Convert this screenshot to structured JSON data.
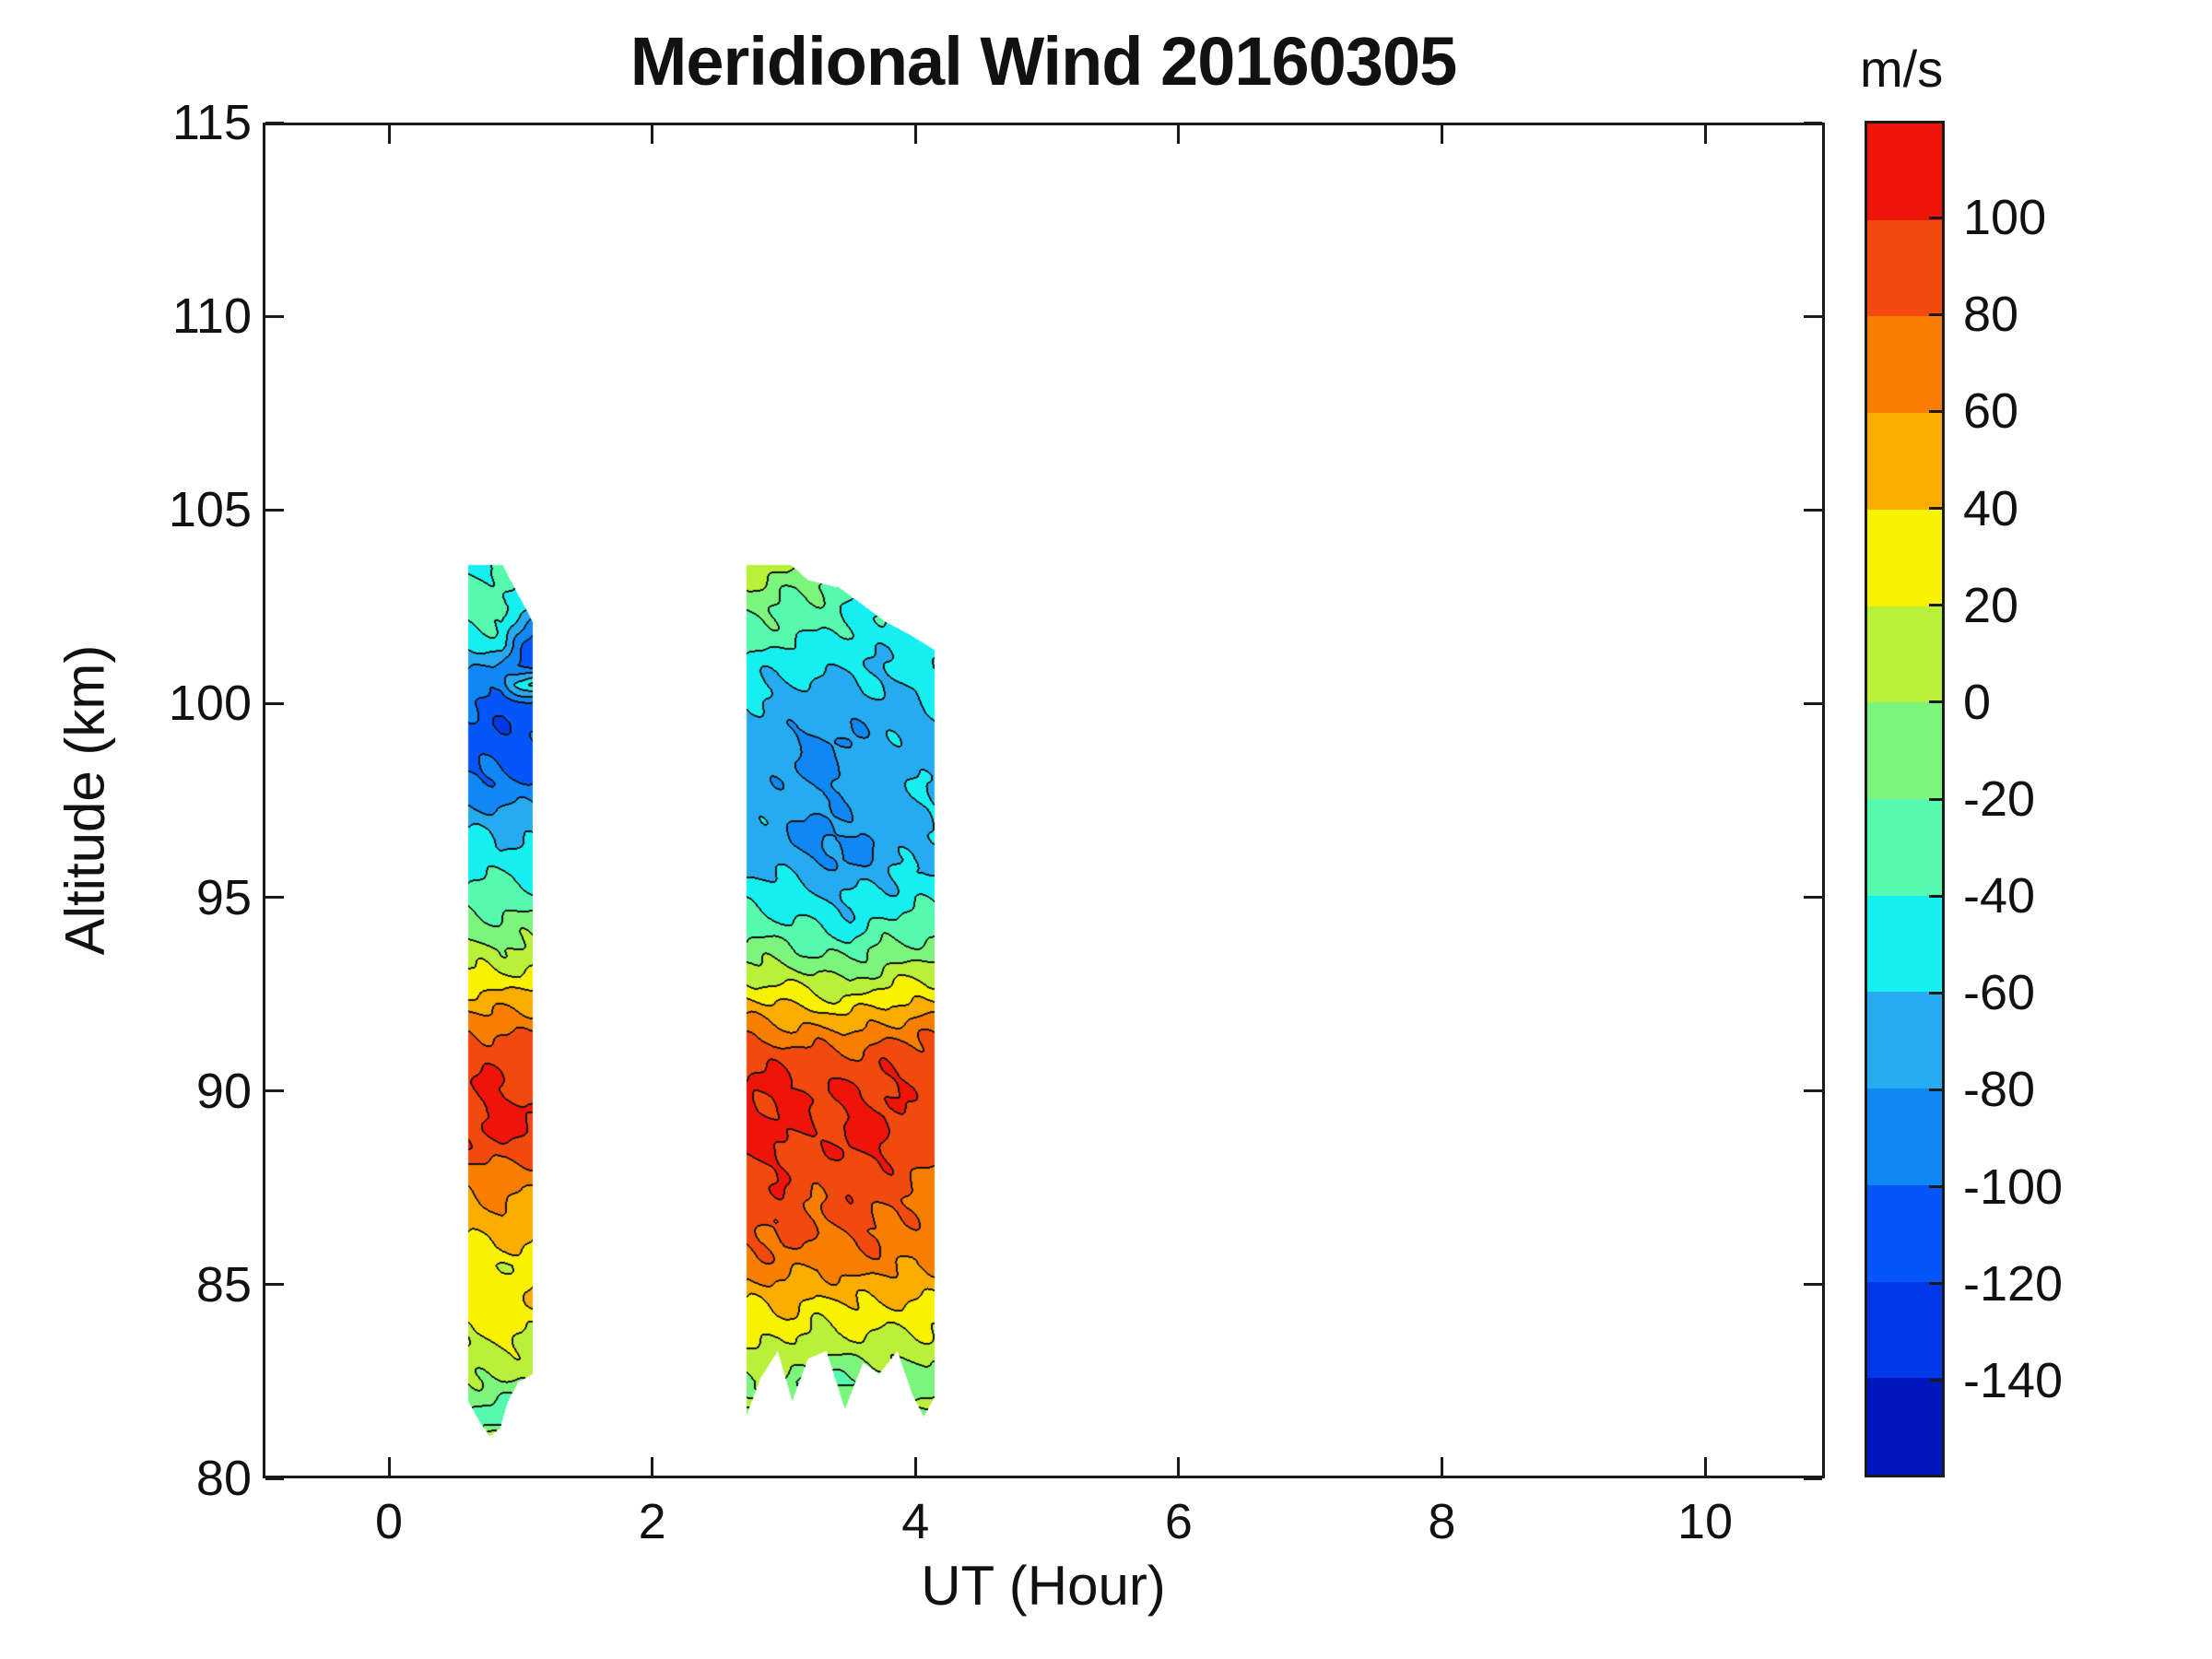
{
  "title": "Meridional Wind 20160305",
  "axes": {
    "xlabel": "UT (Hour)",
    "ylabel": "Altitude (km)",
    "xlim": [
      -0.96,
      10.91
    ],
    "ylim": [
      80,
      115
    ],
    "xticks": [
      0,
      2,
      4,
      6,
      8,
      10
    ],
    "yticks": [
      80,
      85,
      90,
      95,
      100,
      105,
      110,
      115
    ],
    "axis_color": "#1a1a1a",
    "background": "#ffffff"
  },
  "colorbar": {
    "unit": "m/s",
    "tick_values": [
      100,
      80,
      60,
      40,
      20,
      0,
      -20,
      -40,
      -60,
      -80,
      -100,
      -120,
      -140
    ],
    "level_min": -160,
    "level_max": 120,
    "level_step": 20,
    "colors_ascending": [
      "#0016BE",
      "#0038E8",
      "#0556FA",
      "#0F87F5",
      "#27ABF0",
      "#16EFF0",
      "#55FAAE",
      "#7CF57C",
      "#B8F03A",
      "#F8F200",
      "#FAAC00",
      "#F87E00",
      "#F2490E",
      "#EE1409"
    ],
    "contour_line_color": "#111111"
  },
  "chart_data": {
    "type": "heatmap",
    "subtype": "filled-contour",
    "units": "m/s",
    "title": "Meridional Wind 20160305",
    "xlabel": "UT (Hour)",
    "ylabel": "Altitude (km)",
    "levels": [
      -160,
      -140,
      -120,
      -100,
      -80,
      -60,
      -40,
      -20,
      0,
      20,
      40,
      60,
      80,
      100,
      120
    ],
    "patches": [
      {
        "name": "patch-1",
        "t_range": [
          0.6,
          1.09
        ],
        "times": [
          0.62,
          0.85,
          1.08
        ],
        "top_outline": [
          [
            0.6,
            103.6
          ],
          [
            0.86,
            103.6
          ],
          [
            0.95,
            103.0
          ],
          [
            1.03,
            102.5
          ],
          [
            1.09,
            102.1
          ]
        ],
        "bottom_outline": [
          [
            0.6,
            82.0
          ],
          [
            0.68,
            81.5
          ],
          [
            0.76,
            81.1
          ],
          [
            0.84,
            81.3
          ],
          [
            0.9,
            82.0
          ],
          [
            0.98,
            82.5
          ],
          [
            1.09,
            82.7
          ]
        ],
        "alts": [
          81,
          81.5,
          82,
          82.5,
          83,
          83.5,
          84,
          84.5,
          85,
          85.5,
          86,
          86.5,
          87,
          87.5,
          88,
          88.5,
          89,
          89.5,
          90,
          90.5,
          91,
          91.5,
          92,
          92.5,
          93,
          93.5,
          94,
          94.5,
          95,
          95.5,
          96,
          96.5,
          97,
          97.5,
          98,
          98.5,
          99,
          99.5,
          100,
          100.5,
          101,
          101.5,
          102,
          102.5,
          103,
          103.5,
          104
        ],
        "values": [
          [
            15,
            20,
            18
          ],
          [
            -38,
            -30,
            -28
          ],
          [
            -18,
            -22,
            -25
          ],
          [
            -4,
            0,
            -8
          ],
          [
            8,
            12,
            6
          ],
          [
            18,
            22,
            15
          ],
          [
            25,
            30,
            28
          ],
          [
            35,
            28,
            42
          ],
          [
            30,
            32,
            35
          ],
          [
            25,
            20,
            28
          ],
          [
            38,
            42,
            35
          ],
          [
            48,
            52,
            45
          ],
          [
            55,
            60,
            52
          ],
          [
            62,
            68,
            58
          ],
          [
            72,
            78,
            70
          ],
          [
            90,
            96,
            88
          ],
          [
            100,
            106,
            98
          ],
          [
            104,
            108,
            102
          ],
          [
            96,
            102,
            94
          ],
          [
            94,
            98,
            92
          ],
          [
            88,
            95,
            90
          ],
          [
            78,
            85,
            80
          ],
          [
            62,
            60,
            64
          ],
          [
            45,
            42,
            48
          ],
          [
            25,
            22,
            28
          ],
          [
            8,
            5,
            8
          ],
          [
            -5,
            -8,
            -6
          ],
          [
            -16,
            -18,
            -16
          ],
          [
            -28,
            -32,
            -30
          ],
          [
            -38,
            -42,
            -40
          ],
          [
            -46,
            -50,
            -48
          ],
          [
            -56,
            -60,
            -58
          ],
          [
            -68,
            -72,
            -70
          ],
          [
            -82,
            -88,
            -84
          ],
          [
            -94,
            -100,
            -96
          ],
          [
            -102,
            -108,
            -103
          ],
          [
            -108,
            -112,
            -108
          ],
          [
            -106,
            -116,
            -110
          ],
          [
            -100,
            -110,
            -106
          ],
          [
            -88,
            -98,
            -30
          ],
          [
            -72,
            -84,
            -112
          ],
          [
            -58,
            -54,
            -106
          ],
          [
            -44,
            -40,
            -95
          ],
          [
            -30,
            -26,
            -72
          ],
          [
            -36,
            -32,
            -58
          ],
          [
            -42,
            -46,
            -52
          ],
          [
            -40,
            -45,
            -45
          ]
        ]
      },
      {
        "name": "patch-2",
        "t_range": [
          2.71,
          4.14
        ],
        "times": [
          2.75,
          3.0,
          3.25,
          3.5,
          3.75,
          4.05
        ],
        "top_outline": [
          [
            2.71,
            103.6
          ],
          [
            3.05,
            103.6
          ],
          [
            3.18,
            103.2
          ],
          [
            3.42,
            103.0
          ],
          [
            3.58,
            102.6
          ],
          [
            3.78,
            102.1
          ],
          [
            3.95,
            101.8
          ],
          [
            4.14,
            101.4
          ]
        ],
        "bottom_outline": [
          [
            2.71,
            81.6
          ],
          [
            2.82,
            82.6
          ],
          [
            2.95,
            83.3
          ],
          [
            3.06,
            82.0
          ],
          [
            3.18,
            83.1
          ],
          [
            3.32,
            83.3
          ],
          [
            3.46,
            81.8
          ],
          [
            3.6,
            83.0
          ],
          [
            3.72,
            82.7
          ],
          [
            3.86,
            83.3
          ],
          [
            3.97,
            82.2
          ],
          [
            4.06,
            81.6
          ],
          [
            4.14,
            82.1
          ]
        ],
        "alts": [
          81.5,
          82,
          82.5,
          83,
          83.5,
          84,
          84.5,
          85,
          85.5,
          86,
          86.5,
          87,
          87.5,
          88,
          88.5,
          89,
          89.5,
          90,
          90.5,
          91,
          91.5,
          92,
          92.5,
          93,
          93.5,
          94,
          94.5,
          95,
          95.5,
          96,
          96.5,
          97,
          97.5,
          98,
          98.5,
          99,
          99.5,
          100,
          100.5,
          101,
          101.5,
          102,
          102.5,
          103,
          103.5,
          104
        ],
        "values": [
          [
            -2,
            4,
            -26,
            -10,
            -4,
            0
          ],
          [
            2,
            6,
            -22,
            -8,
            -2,
            2
          ],
          [
            -6,
            -2,
            -42,
            -18,
            -12,
            -10
          ],
          [
            6,
            10,
            -8,
            0,
            -2,
            0
          ],
          [
            18,
            23,
            8,
            15,
            12,
            12
          ],
          [
            28,
            33,
            22,
            28,
            26,
            24
          ],
          [
            40,
            46,
            34,
            40,
            38,
            36
          ],
          [
            56,
            60,
            45,
            55,
            52,
            48
          ],
          [
            70,
            73,
            58,
            70,
            68,
            60
          ],
          [
            78,
            81,
            70,
            78,
            76,
            66
          ],
          [
            84,
            87,
            77,
            84,
            80,
            70
          ],
          [
            88,
            90,
            82,
            89,
            84,
            74
          ],
          [
            92,
            95,
            85,
            94,
            89,
            77
          ],
          [
            96,
            98,
            88,
            97,
            94,
            80
          ],
          [
            100,
            105,
            92,
            104,
            99,
            84
          ],
          [
            105,
            102,
            98,
            102,
            105,
            86
          ],
          [
            103,
            106,
            95,
            105,
            102,
            88
          ],
          [
            105,
            102,
            98,
            102,
            105,
            90
          ],
          [
            100,
            96,
            92,
            90,
            98,
            92
          ],
          [
            90,
            86,
            82,
            80,
            88,
            88
          ],
          [
            75,
            70,
            65,
            62,
            72,
            76
          ],
          [
            55,
            50,
            45,
            40,
            50,
            56
          ],
          [
            35,
            30,
            22,
            15,
            28,
            35
          ],
          [
            15,
            10,
            2,
            -5,
            8,
            15
          ],
          [
            -5,
            -10,
            -18,
            -25,
            -10,
            -4
          ],
          [
            -22,
            -26,
            -34,
            -42,
            -28,
            -22
          ],
          [
            -36,
            -40,
            -48,
            -55,
            -42,
            -36
          ],
          [
            -48,
            -52,
            -58,
            -62,
            -52,
            -46
          ],
          [
            -58,
            -62,
            -68,
            -72,
            -60,
            -55
          ],
          [
            -66,
            -70,
            -80,
            -86,
            -72,
            -62
          ],
          [
            -70,
            -74,
            -90,
            -82,
            -70,
            -64
          ],
          [
            -68,
            -72,
            -84,
            -76,
            -68,
            -63
          ],
          [
            -66,
            -70,
            -76,
            -72,
            -66,
            -62
          ],
          [
            -68,
            -74,
            -84,
            -78,
            -68,
            -64
          ],
          [
            -70,
            -76,
            -88,
            -80,
            -70,
            -66
          ],
          [
            -70,
            -75,
            -85,
            -78,
            -70,
            -66
          ],
          [
            -68,
            -72,
            -78,
            -74,
            -68,
            -64
          ],
          [
            -64,
            -68,
            -72,
            -70,
            -66,
            -62
          ],
          [
            -58,
            -62,
            -64,
            -63,
            -61,
            -58
          ],
          [
            -48,
            -52,
            -55,
            -58,
            -57,
            -56
          ],
          [
            -35,
            -40,
            -44,
            -50,
            -53,
            -55
          ],
          [
            -25,
            -30,
            -34,
            -42,
            -47,
            -52
          ],
          [
            -15,
            -22,
            -28,
            -38,
            -44,
            -50
          ],
          [
            -2,
            -12,
            -22,
            -32,
            -42,
            -46
          ],
          [
            12,
            2,
            -12,
            -22,
            -32,
            -42
          ],
          [
            15,
            8,
            -5,
            -18,
            -28,
            -38
          ]
        ]
      }
    ]
  }
}
